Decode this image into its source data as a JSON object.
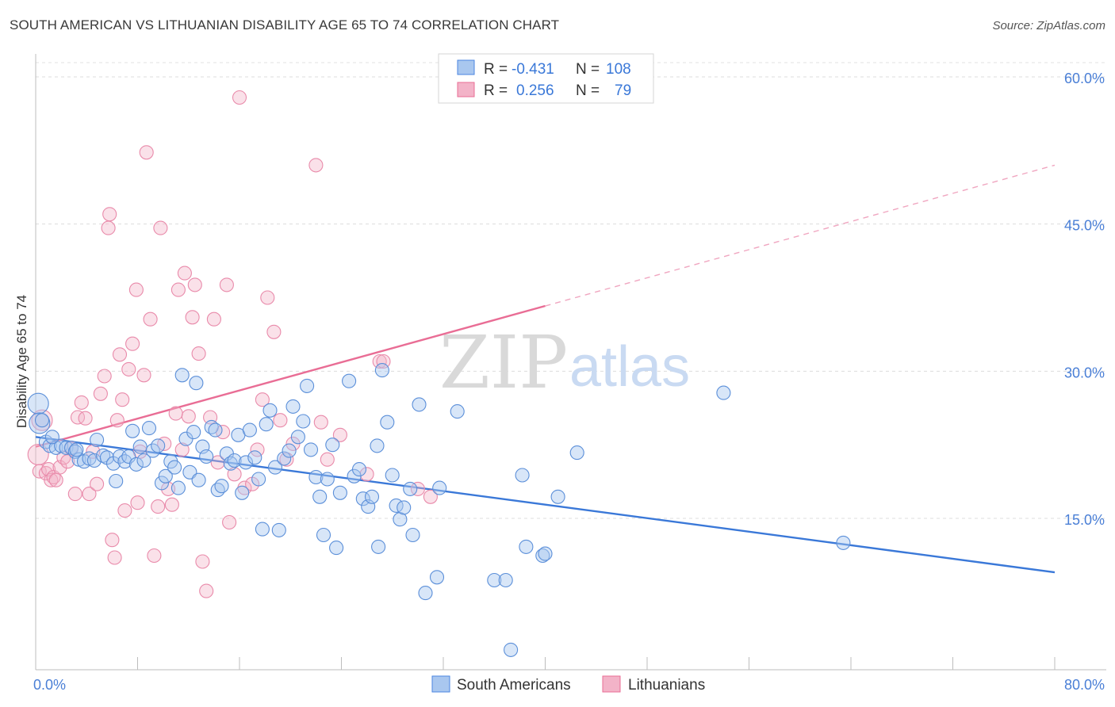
{
  "title": "SOUTH AMERICAN VS LITHUANIAN DISABILITY AGE 65 TO 74 CORRELATION CHART",
  "source": "Source: ZipAtlas.com",
  "watermark": {
    "zip": "ZIP",
    "atlas": "atlas"
  },
  "legend_top": {
    "r_label": "R =",
    "n_label": "N =",
    "south_americans": {
      "r": "-0.431",
      "n": "108"
    },
    "lithuanians": {
      "r": "0.256",
      "n": "79"
    }
  },
  "legend_bottom": [
    "South Americans",
    "Lithuanians"
  ],
  "colors": {
    "blue": "#4a86e0",
    "blue_fill": "#a9c7ef",
    "pink": "#e96d95",
    "pink_fill": "#f3b3c8",
    "tick": "#4a7fd6"
  },
  "chart_data": {
    "type": "scatter",
    "title": "SOUTH AMERICAN VS LITHUANIAN DISABILITY AGE 65 TO 74 CORRELATION CHART",
    "xlabel": "",
    "ylabel": "Disability Age 65 to 74",
    "xlim": [
      0,
      80
    ],
    "ylim": [
      0,
      60
    ],
    "x_tick_labels": [
      "0.0%",
      "80.0%"
    ],
    "y_tick_labels": [
      "15.0%",
      "30.0%",
      "45.0%",
      "60.0%"
    ],
    "y_ticks": [
      15,
      30,
      45,
      60
    ],
    "grid": true,
    "legend_placement": "top-center",
    "series": [
      {
        "name": "South Americans",
        "color": "#4a86e0",
        "trend": {
          "x": [
            0,
            80
          ],
          "y": [
            23.3,
            9.5
          ],
          "solid_until": 80
        },
        "points": [
          [
            0.2,
            26.7
          ],
          [
            0.3,
            24.7
          ],
          [
            0.8,
            22.8
          ],
          [
            1.1,
            22.4
          ],
          [
            1.6,
            22.2
          ],
          [
            2.0,
            22.4
          ],
          [
            2.4,
            22.2
          ],
          [
            2.8,
            22.2
          ],
          [
            3.1,
            21.8
          ],
          [
            3.4,
            21.0
          ],
          [
            3.8,
            20.8
          ],
          [
            4.2,
            21.1
          ],
          [
            4.6,
            20.9
          ],
          [
            4.8,
            23.0
          ],
          [
            5.3,
            21.4
          ],
          [
            5.6,
            21.2
          ],
          [
            6.1,
            20.6
          ],
          [
            6.3,
            18.8
          ],
          [
            6.6,
            21.3
          ],
          [
            7.0,
            20.8
          ],
          [
            7.3,
            21.3
          ],
          [
            7.6,
            23.9
          ],
          [
            7.9,
            20.5
          ],
          [
            8.2,
            22.3
          ],
          [
            8.5,
            20.9
          ],
          [
            8.9,
            24.2
          ],
          [
            9.2,
            21.9
          ],
          [
            9.6,
            22.4
          ],
          [
            9.9,
            18.6
          ],
          [
            10.2,
            19.3
          ],
          [
            10.6,
            20.8
          ],
          [
            10.9,
            20.2
          ],
          [
            11.2,
            18.1
          ],
          [
            11.5,
            29.6
          ],
          [
            11.8,
            23.1
          ],
          [
            12.1,
            19.7
          ],
          [
            12.4,
            23.8
          ],
          [
            12.6,
            28.8
          ],
          [
            12.8,
            18.9
          ],
          [
            13.1,
            22.3
          ],
          [
            13.4,
            21.3
          ],
          [
            13.8,
            24.3
          ],
          [
            14.1,
            24.0
          ],
          [
            14.3,
            17.9
          ],
          [
            14.6,
            18.3
          ],
          [
            15.0,
            21.6
          ],
          [
            15.3,
            20.6
          ],
          [
            15.6,
            20.9
          ],
          [
            15.9,
            23.5
          ],
          [
            16.2,
            17.6
          ],
          [
            16.5,
            20.7
          ],
          [
            16.8,
            24.0
          ],
          [
            17.2,
            21.2
          ],
          [
            17.5,
            19.0
          ],
          [
            17.8,
            13.9
          ],
          [
            18.1,
            24.6
          ],
          [
            18.4,
            26.0
          ],
          [
            18.8,
            20.2
          ],
          [
            19.1,
            13.8
          ],
          [
            19.5,
            21.1
          ],
          [
            19.9,
            21.9
          ],
          [
            20.2,
            26.4
          ],
          [
            20.6,
            23.3
          ],
          [
            21.0,
            24.9
          ],
          [
            21.3,
            28.5
          ],
          [
            21.6,
            22.0
          ],
          [
            22.0,
            19.2
          ],
          [
            22.3,
            17.2
          ],
          [
            22.6,
            13.3
          ],
          [
            22.9,
            19.0
          ],
          [
            23.3,
            22.5
          ],
          [
            23.6,
            12.0
          ],
          [
            23.9,
            17.6
          ],
          [
            24.6,
            29.0
          ],
          [
            25.0,
            19.3
          ],
          [
            25.4,
            20.0
          ],
          [
            25.7,
            17.0
          ],
          [
            26.1,
            16.2
          ],
          [
            26.4,
            17.2
          ],
          [
            26.8,
            22.4
          ],
          [
            26.9,
            12.1
          ],
          [
            27.2,
            30.1
          ],
          [
            27.6,
            24.8
          ],
          [
            28.0,
            19.4
          ],
          [
            28.3,
            16.3
          ],
          [
            28.6,
            14.9
          ],
          [
            28.9,
            16.1
          ],
          [
            29.4,
            18.0
          ],
          [
            29.6,
            13.3
          ],
          [
            30.1,
            26.6
          ],
          [
            30.6,
            7.4
          ],
          [
            31.5,
            9.0
          ],
          [
            31.7,
            18.1
          ],
          [
            33.1,
            25.9
          ],
          [
            36.0,
            8.7
          ],
          [
            36.9,
            8.7
          ],
          [
            37.3,
            1.6
          ],
          [
            38.2,
            19.4
          ],
          [
            38.5,
            12.1
          ],
          [
            39.8,
            11.2
          ],
          [
            40.0,
            11.4
          ],
          [
            41.0,
            17.2
          ],
          [
            42.5,
            21.7
          ],
          [
            54.0,
            27.8
          ],
          [
            63.4,
            12.5
          ],
          [
            0.5,
            25.0
          ],
          [
            1.3,
            23.3
          ],
          [
            3.2,
            22.0
          ]
        ]
      },
      {
        "name": "Lithuanians",
        "color": "#e96d95",
        "trend": {
          "x": [
            0,
            80
          ],
          "y": [
            22.3,
            51.0
          ],
          "solid_until": 40
        },
        "points": [
          [
            0.2,
            21.5
          ],
          [
            0.3,
            19.8
          ],
          [
            0.5,
            25.0
          ],
          [
            0.8,
            19.6
          ],
          [
            1.0,
            20.0
          ],
          [
            1.2,
            18.9
          ],
          [
            1.4,
            19.2
          ],
          [
            1.6,
            18.9
          ],
          [
            1.9,
            20.2
          ],
          [
            2.2,
            21.2
          ],
          [
            2.5,
            20.8
          ],
          [
            2.8,
            22.1
          ],
          [
            3.1,
            17.5
          ],
          [
            3.3,
            25.3
          ],
          [
            3.6,
            26.8
          ],
          [
            3.9,
            25.2
          ],
          [
            4.2,
            17.5
          ],
          [
            4.5,
            21.8
          ],
          [
            4.8,
            18.5
          ],
          [
            5.1,
            27.7
          ],
          [
            5.4,
            29.5
          ],
          [
            5.7,
            44.6
          ],
          [
            5.8,
            46.0
          ],
          [
            6.0,
            12.8
          ],
          [
            6.2,
            11.0
          ],
          [
            6.4,
            25.0
          ],
          [
            6.6,
            31.7
          ],
          [
            6.8,
            27.1
          ],
          [
            7.0,
            15.8
          ],
          [
            7.3,
            30.2
          ],
          [
            7.6,
            32.8
          ],
          [
            7.9,
            38.3
          ],
          [
            8.0,
            16.6
          ],
          [
            8.2,
            21.8
          ],
          [
            8.5,
            29.6
          ],
          [
            8.7,
            52.3
          ],
          [
            9.0,
            35.3
          ],
          [
            9.3,
            11.2
          ],
          [
            9.6,
            16.2
          ],
          [
            9.8,
            44.6
          ],
          [
            10.1,
            22.6
          ],
          [
            10.4,
            18.0
          ],
          [
            10.7,
            16.4
          ],
          [
            11.0,
            25.7
          ],
          [
            11.2,
            38.3
          ],
          [
            11.5,
            22.0
          ],
          [
            11.7,
            40.0
          ],
          [
            12.0,
            25.4
          ],
          [
            12.3,
            35.5
          ],
          [
            12.5,
            38.8
          ],
          [
            12.8,
            31.8
          ],
          [
            13.1,
            10.6
          ],
          [
            13.4,
            7.6
          ],
          [
            13.7,
            25.3
          ],
          [
            14.0,
            35.3
          ],
          [
            14.3,
            20.7
          ],
          [
            14.7,
            23.8
          ],
          [
            15.0,
            38.8
          ],
          [
            15.2,
            14.6
          ],
          [
            15.6,
            19.5
          ],
          [
            16.0,
            57.9
          ],
          [
            16.4,
            18.1
          ],
          [
            17.0,
            18.5
          ],
          [
            17.4,
            22.0
          ],
          [
            17.8,
            27.1
          ],
          [
            18.2,
            37.5
          ],
          [
            18.7,
            34.0
          ],
          [
            19.2,
            25.0
          ],
          [
            19.7,
            21.0
          ],
          [
            20.2,
            22.6
          ],
          [
            22.0,
            51.0
          ],
          [
            22.4,
            24.8
          ],
          [
            22.9,
            21.0
          ],
          [
            23.9,
            23.5
          ],
          [
            26.0,
            19.5
          ],
          [
            27.0,
            31.0
          ],
          [
            27.3,
            31.0
          ],
          [
            30.0,
            18.0
          ],
          [
            31.0,
            17.2
          ]
        ]
      }
    ]
  }
}
